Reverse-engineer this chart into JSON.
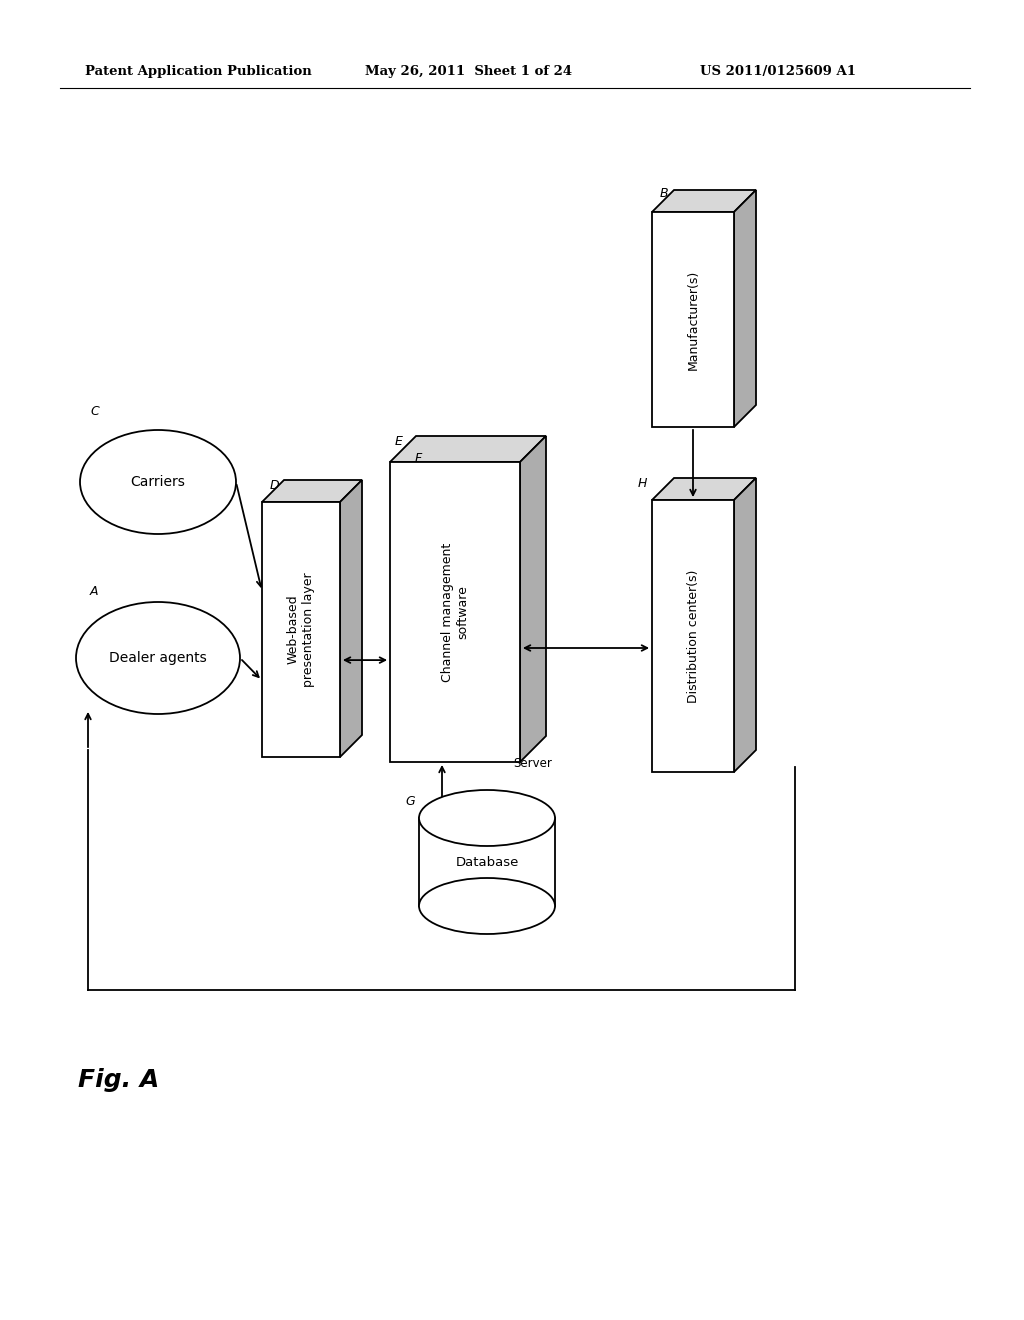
{
  "background_color": "#ffffff",
  "header_text": "Patent Application Publication",
  "header_date": "May 26, 2011  Sheet 1 of 24",
  "header_patent": "US 2011/0125609 A1",
  "fig_label": "Fig. A"
}
